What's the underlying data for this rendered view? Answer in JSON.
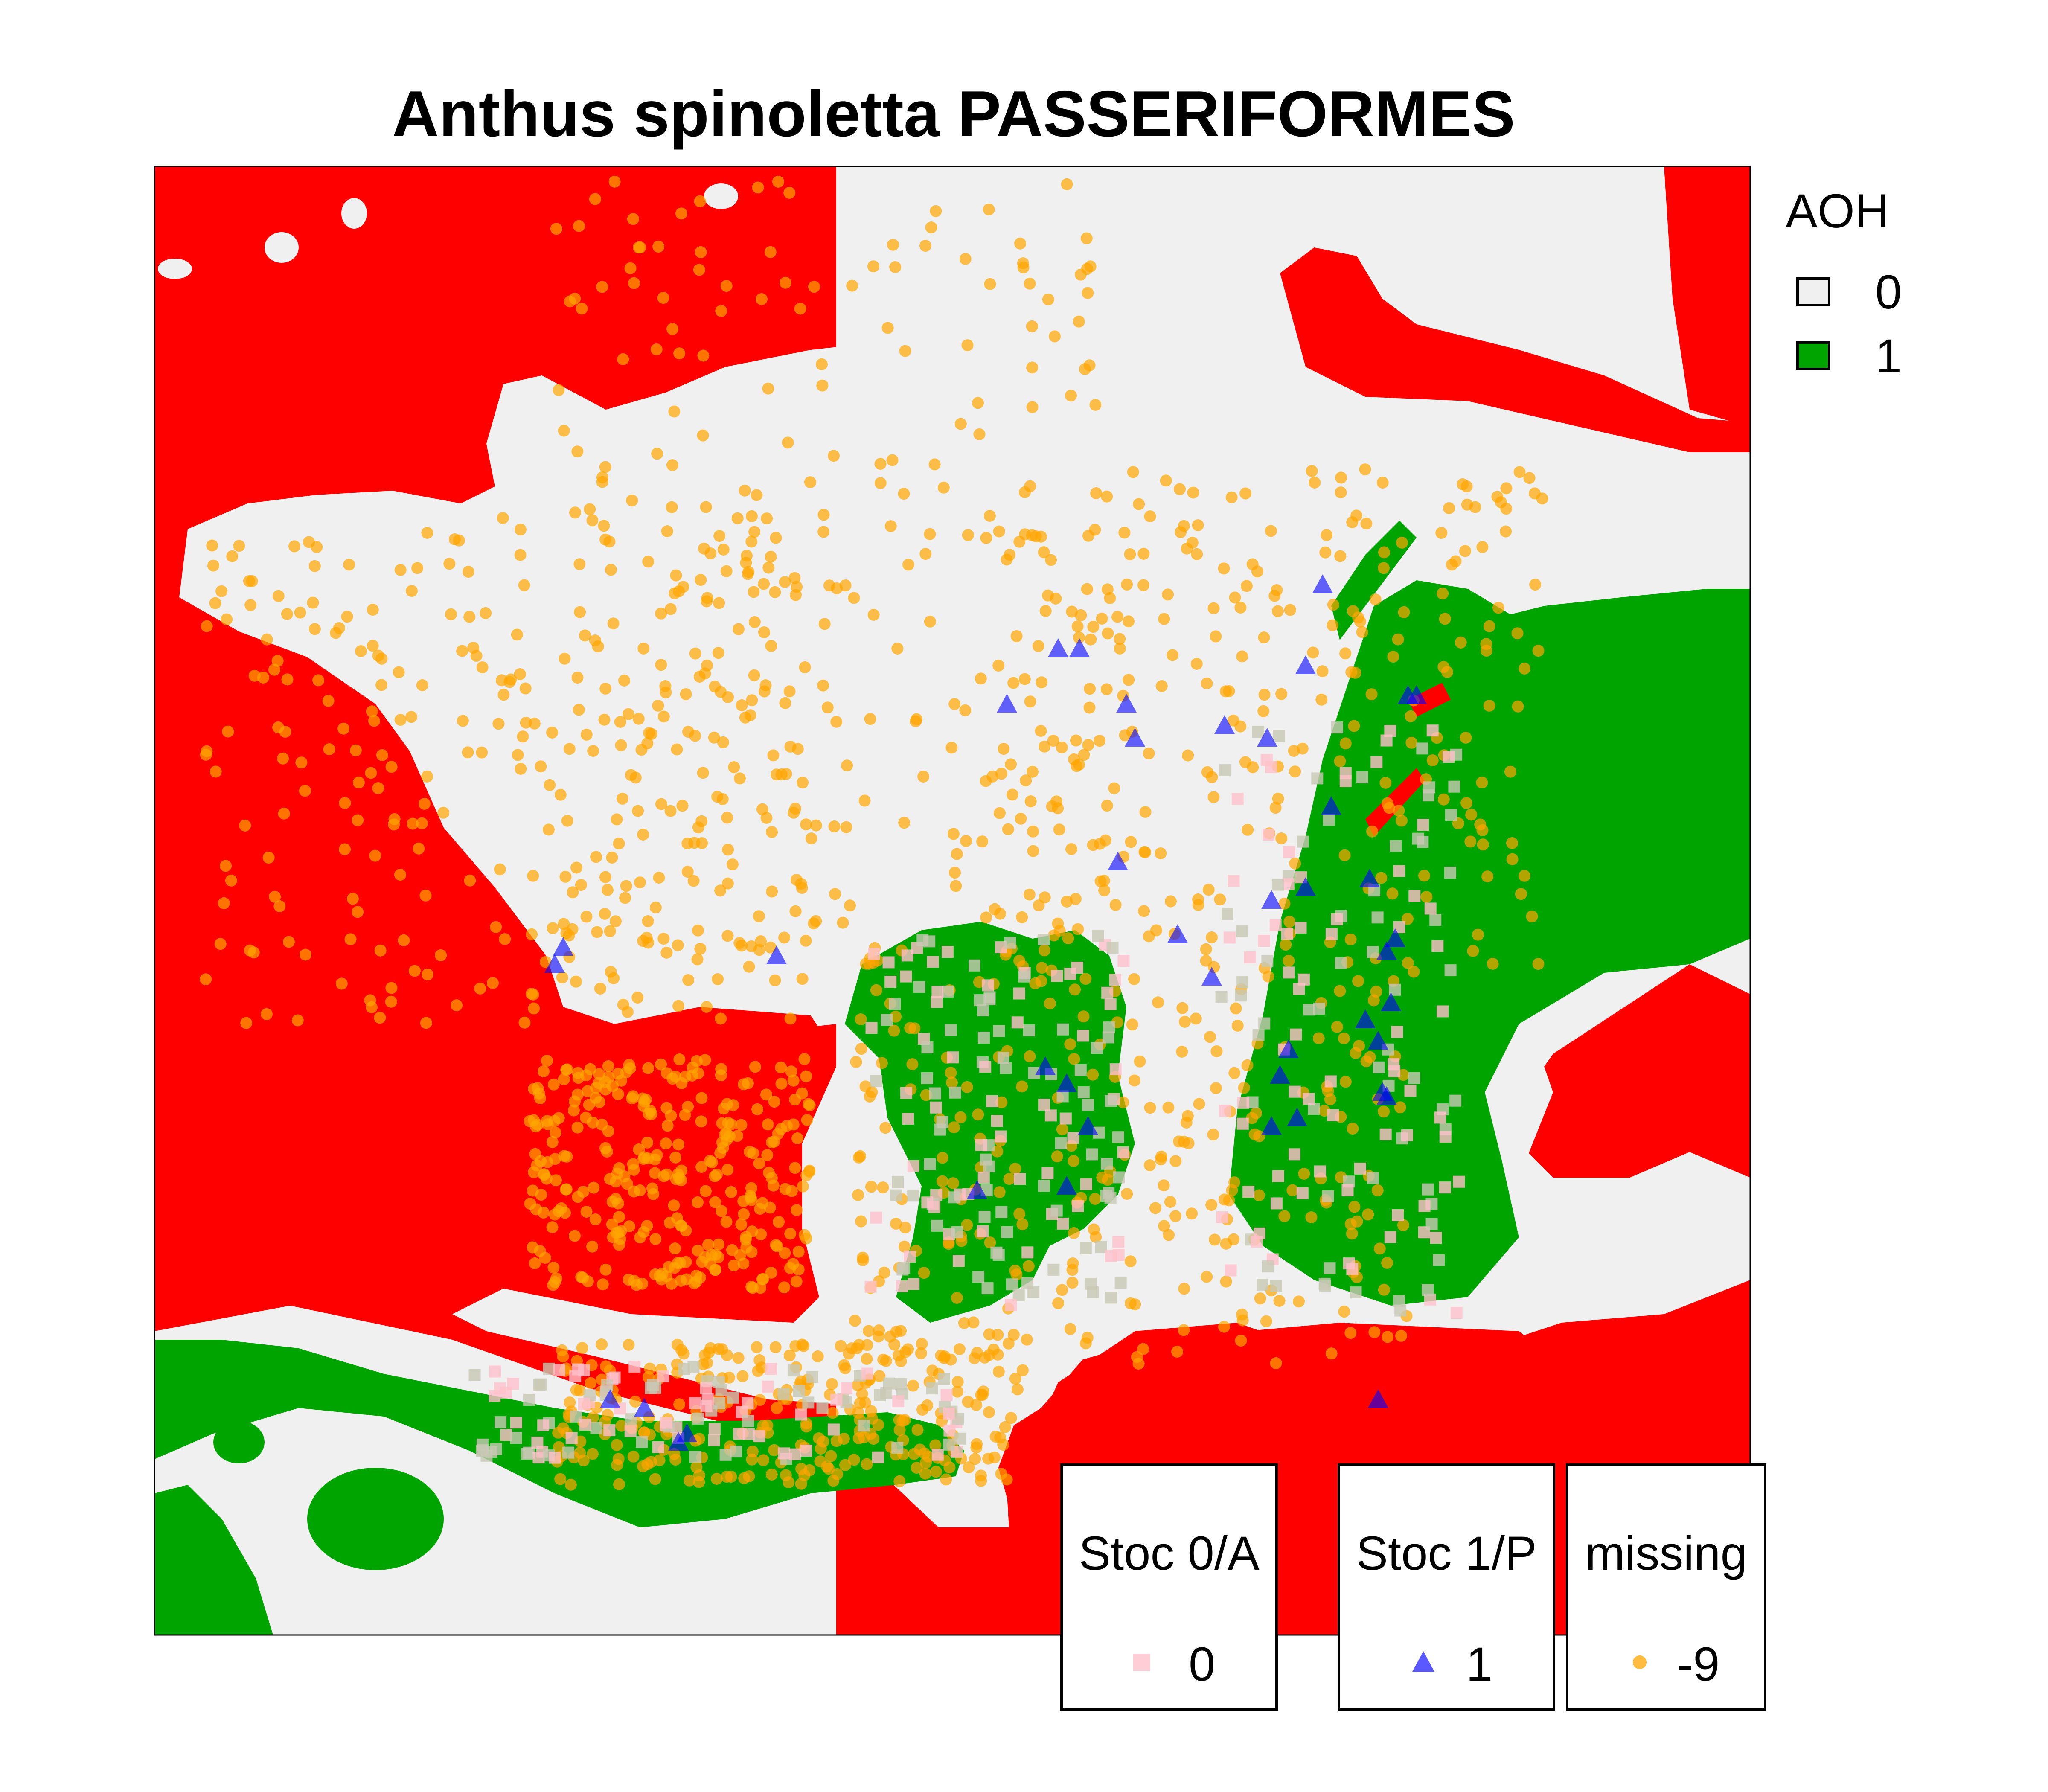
{
  "title": "Anthus spinoletta PASSERIFORMES",
  "colors": {
    "outside_range": "#ff0000",
    "aoh_0": "#f0f0f0",
    "aoh_1": "#00a400",
    "stoc_0": "#ffc0cb",
    "stoc_1": "#0000ff",
    "missing": "#ffa500"
  },
  "legend_aoh": {
    "title": "AOH",
    "items": [
      {
        "label": "0",
        "color": "#f0f0f0"
      },
      {
        "label": "1",
        "color": "#00a400"
      }
    ]
  },
  "point_keys": [
    {
      "title": "Stoc 0/A",
      "label": "0",
      "symbol": "square-icon",
      "color": "#ffc0cb"
    },
    {
      "title": "Stoc 1/P",
      "label": "1",
      "symbol": "triangle-icon",
      "color": "#0000ff"
    },
    {
      "title": "missing",
      "label": "-9",
      "symbol": "circle-icon",
      "color": "#ffa500"
    }
  ]
}
